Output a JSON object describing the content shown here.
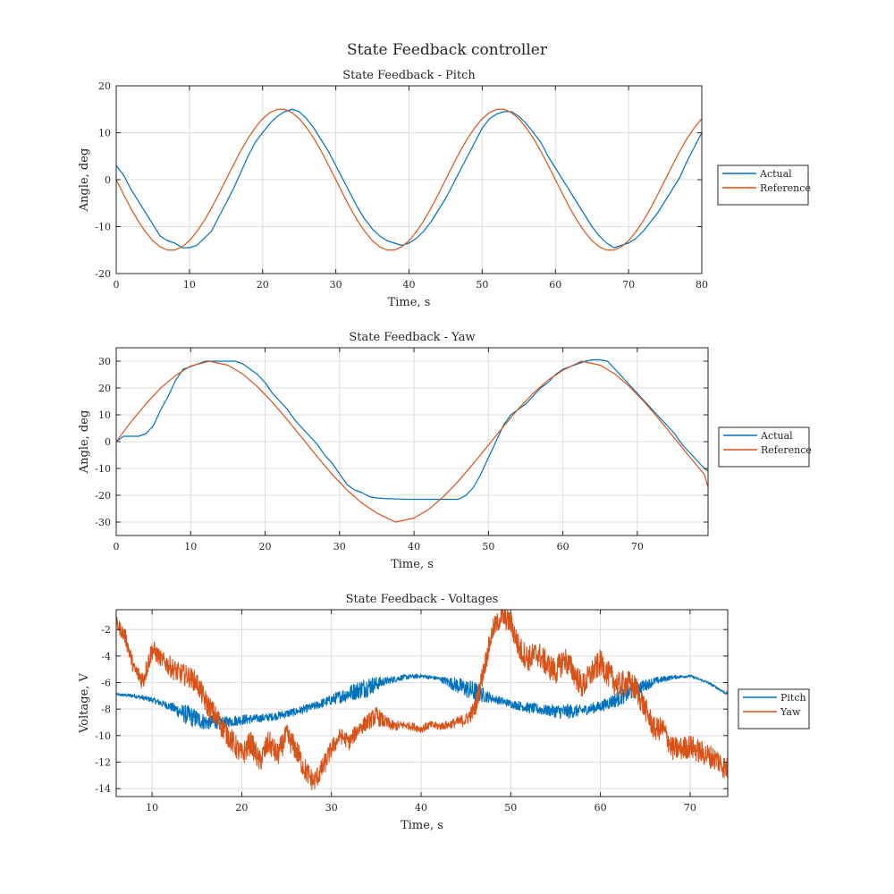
{
  "figure_title": "State Feedback controller",
  "colors": {
    "blue": "#0072BD",
    "orange": "#D95319",
    "axis": "#262626",
    "grid": "#dcdcdc"
  },
  "chart_data": [
    {
      "type": "line",
      "title": "State Feedback - Pitch",
      "xlabel": "Time, s",
      "ylabel": "Angle, deg",
      "xlim": [
        0,
        80
      ],
      "ylim": [
        -20,
        20
      ],
      "xticks": [
        0,
        10,
        20,
        30,
        40,
        50,
        60,
        70,
        80
      ],
      "yticks": [
        -20,
        -10,
        0,
        10,
        20
      ],
      "grid": true,
      "legend_position": "east-outside",
      "series": [
        {
          "name": "Actual",
          "color": "#0072BD",
          "x": [
            0,
            1,
            2,
            3,
            4,
            5,
            6,
            7,
            8,
            9,
            10,
            11,
            12,
            13,
            14,
            15,
            16,
            17,
            18,
            19,
            20,
            21,
            22,
            23,
            24,
            25,
            26,
            27,
            28,
            29,
            30,
            31,
            32,
            33,
            34,
            35,
            36,
            37,
            38,
            39,
            40,
            41,
            42,
            43,
            44,
            45,
            46,
            47,
            48,
            49,
            50,
            51,
            52,
            53,
            54,
            55,
            56,
            57,
            58,
            59,
            60,
            61,
            62,
            63,
            64,
            65,
            66,
            67,
            68,
            69,
            70,
            71,
            72,
            73,
            74,
            75,
            76,
            77,
            78,
            79,
            80
          ],
          "y": [
            3,
            1,
            -2,
            -4.5,
            -7,
            -9.5,
            -12,
            -13,
            -13.5,
            -14.5,
            -14.5,
            -14,
            -12.5,
            -11,
            -8,
            -5,
            -2,
            1.5,
            5,
            8,
            10,
            12,
            13.5,
            14.5,
            15,
            14.5,
            13,
            11,
            8.5,
            6,
            3,
            0,
            -3,
            -6,
            -8.5,
            -10.5,
            -12,
            -13,
            -13.5,
            -14,
            -13.5,
            -12.5,
            -11,
            -9,
            -6.5,
            -4,
            -1,
            2,
            5,
            8,
            11,
            13,
            14,
            14.5,
            14.5,
            13.5,
            12,
            10,
            8,
            5,
            2.5,
            0,
            -2.5,
            -5,
            -7.5,
            -10,
            -12,
            -13.5,
            -14.5,
            -14,
            -13.5,
            -12.5,
            -11,
            -9,
            -7,
            -4.5,
            -2,
            0.5,
            4,
            7,
            10
          ]
        },
        {
          "name": "Reference",
          "color": "#D95319",
          "x": [
            0,
            1,
            2,
            3,
            4,
            5,
            6,
            7,
            8,
            9,
            10,
            11,
            12,
            13,
            14,
            15,
            16,
            17,
            18,
            19,
            20,
            21,
            22,
            23,
            24,
            25,
            26,
            27,
            28,
            29,
            30,
            31,
            32,
            33,
            34,
            35,
            36,
            37,
            38,
            39,
            40,
            41,
            42,
            43,
            44,
            45,
            46,
            47,
            48,
            49,
            50,
            51,
            52,
            53,
            54,
            55,
            56,
            57,
            58,
            59,
            60,
            61,
            62,
            63,
            64,
            65,
            66,
            67,
            68,
            69,
            70,
            71,
            72,
            73,
            74,
            75,
            76,
            77,
            78,
            79,
            80
          ],
          "y": [
            0,
            -3.1,
            -6.1,
            -8.8,
            -11.1,
            -13,
            -14.3,
            -15,
            -15,
            -14.3,
            -13,
            -11.1,
            -8.8,
            -6.1,
            -3.1,
            0,
            3.1,
            6.1,
            8.8,
            11.1,
            13,
            14.3,
            15,
            15,
            14.3,
            13,
            11.1,
            8.8,
            6.1,
            3.1,
            0,
            -3.1,
            -6.1,
            -8.8,
            -11.1,
            -13,
            -14.3,
            -15,
            -15,
            -14.3,
            -13,
            -11.1,
            -8.8,
            -6.1,
            -3.1,
            0,
            3.1,
            6.1,
            8.8,
            11.1,
            13,
            14.3,
            15,
            15,
            14.3,
            13,
            11.1,
            8.8,
            6.1,
            3.1,
            0,
            -3.1,
            -6.1,
            -8.8,
            -11.1,
            -13,
            -14.3,
            -15,
            -15,
            -14.3,
            -13,
            -11.1,
            -8.8,
            -6.1,
            -3.1,
            0,
            3.1,
            6.1,
            8.8,
            11.1,
            13
          ]
        }
      ]
    },
    {
      "type": "line",
      "title": "State Feedback - Yaw",
      "xlabel": "Time, s",
      "ylabel": "Angle, deg",
      "xlim": [
        0,
        79.5
      ],
      "ylim": [
        -35,
        35
      ],
      "xticks": [
        0,
        10,
        20,
        30,
        40,
        50,
        60,
        70
      ],
      "yticks": [
        -30,
        -20,
        -10,
        0,
        10,
        20,
        30
      ],
      "grid": true,
      "legend_position": "east-outside",
      "series": [
        {
          "name": "Actual",
          "color": "#0072BD",
          "x": [
            0,
            1,
            2,
            3,
            4,
            5,
            6,
            7,
            8,
            9,
            10,
            11,
            12,
            13,
            14,
            15,
            16,
            17,
            18,
            19,
            20,
            21,
            22,
            23,
            24,
            25,
            26,
            27,
            28,
            29,
            30,
            31,
            32,
            33,
            34,
            35,
            36,
            37,
            38,
            39,
            40,
            41,
            42,
            43,
            44,
            45,
            46,
            47,
            48,
            49,
            50,
            51,
            52,
            53,
            54,
            55,
            56,
            57,
            58,
            59,
            60,
            61,
            62,
            63,
            64,
            65,
            66,
            67,
            68,
            69,
            70,
            71,
            72,
            73,
            74,
            75,
            76,
            77,
            78,
            79,
            79.5
          ],
          "y": [
            0,
            2,
            2,
            2,
            3,
            6,
            12,
            17,
            23,
            27,
            28,
            29,
            30,
            30,
            30,
            30,
            30,
            29,
            27,
            25,
            22,
            18,
            15,
            12,
            8,
            5,
            2,
            -1,
            -5,
            -8,
            -12,
            -16,
            -18,
            -19,
            -20.5,
            -21,
            -21.2,
            -21.3,
            -21.4,
            -21.5,
            -21.5,
            -21.5,
            -21.5,
            -21.5,
            -21.5,
            -21.5,
            -21.5,
            -20,
            -17,
            -12,
            -6,
            0,
            6,
            10,
            12,
            14,
            17,
            20,
            22,
            25,
            27,
            28,
            29,
            30,
            30.5,
            30.5,
            30,
            27,
            24,
            21,
            18,
            15,
            12,
            9,
            6,
            3,
            -1,
            -4,
            -7,
            -10,
            -11
          ]
        },
        {
          "name": "Reference",
          "color": "#D95319",
          "x": [
            0,
            2,
            4,
            6,
            8,
            10,
            12.5,
            15,
            17,
            19,
            21,
            23,
            25,
            27,
            29,
            31,
            33,
            35,
            37.5,
            40,
            42,
            44,
            46,
            48,
            50,
            52,
            54,
            56,
            58,
            60,
            62.5,
            65,
            67,
            69,
            71,
            73,
            75,
            77,
            79,
            79.5
          ],
          "y": [
            0,
            7.4,
            14.1,
            20.1,
            24.7,
            28.2,
            30,
            28.5,
            25.2,
            20.4,
            14.6,
            8.1,
            1.3,
            -5.6,
            -12.2,
            -18,
            -22.9,
            -26.6,
            -30,
            -28.5,
            -25.2,
            -20.4,
            -14.6,
            -8.1,
            -1.3,
            5.6,
            12.2,
            18,
            22.9,
            26.6,
            30,
            28.5,
            25.2,
            20.4,
            14.6,
            8.1,
            1.3,
            -5.6,
            -12.2,
            -17
          ]
        }
      ]
    },
    {
      "type": "line",
      "title": "State Feedback - Voltages",
      "xlabel": "Time, s",
      "ylabel": "Voltage, V",
      "xlim": [
        6,
        74.2
      ],
      "ylim": [
        -14.6,
        -0.5
      ],
      "xticks": [
        10,
        20,
        30,
        40,
        50,
        60,
        70
      ],
      "yticks": [
        -14,
        -12,
        -10,
        -8,
        -6,
        -4,
        -2
      ],
      "grid": true,
      "legend_position": "east-outside",
      "series": [
        {
          "name": "Pitch",
          "color": "#0072BD",
          "x": [
            6,
            8,
            10,
            12,
            14,
            16,
            18,
            20,
            22,
            24,
            26,
            28,
            30,
            32,
            34,
            36,
            38,
            40,
            42,
            44,
            46,
            48,
            50,
            52,
            54,
            56,
            58,
            60,
            62,
            64,
            66,
            68,
            70,
            72,
            74
          ],
          "y": [
            -6.9,
            -7,
            -7.3,
            -7.8,
            -8.5,
            -9,
            -9,
            -8.8,
            -8.7,
            -8.5,
            -8.2,
            -7.8,
            -7.3,
            -6.8,
            -6.3,
            -5.9,
            -5.6,
            -5.5,
            -5.7,
            -6.2,
            -6.7,
            -7.2,
            -7.6,
            -7.9,
            -8.1,
            -8.2,
            -8.1,
            -7.8,
            -7.2,
            -6.5,
            -5.9,
            -5.6,
            -5.5,
            -6,
            -6.8
          ],
          "noise": [
            0.1,
            0.15,
            0.2,
            0.3,
            0.8,
            0.6,
            0.4,
            0.4,
            0.3,
            0.3,
            0.3,
            0.3,
            0.4,
            0.6,
            0.8,
            0.3,
            0.2,
            0.15,
            0.15,
            0.6,
            0.8,
            0.3,
            0.3,
            0.4,
            0.4,
            0.6,
            0.4,
            0.4,
            0.6,
            0.6,
            0.3,
            0.15,
            0.1,
            0.1,
            0.1
          ]
        },
        {
          "name": "Yaw",
          "color": "#D95319",
          "x": [
            6,
            7,
            8,
            9,
            10,
            11,
            12,
            13,
            14,
            15,
            16,
            17,
            18,
            19,
            20,
            21,
            22,
            23,
            24,
            25,
            26,
            27,
            28,
            29,
            30,
            31,
            32,
            33,
            34,
            35,
            36,
            37,
            38,
            39,
            40,
            41,
            42,
            43,
            44,
            45,
            46,
            47,
            48,
            49,
            50,
            51,
            52,
            53,
            54,
            55,
            56,
            57,
            58,
            59,
            60,
            61,
            62,
            63,
            64,
            65,
            66,
            67,
            68,
            69,
            70,
            71,
            72,
            73,
            74
          ],
          "y": [
            -1.5,
            -2.5,
            -5,
            -5.8,
            -3.5,
            -4.2,
            -4.8,
            -5.3,
            -5.5,
            -6,
            -7.5,
            -8.5,
            -9.5,
            -10.5,
            -11.5,
            -10.5,
            -12,
            -10.5,
            -11.5,
            -10,
            -11,
            -12.5,
            -13.5,
            -12.5,
            -11,
            -10,
            -10.5,
            -9.5,
            -9,
            -8.5,
            -9,
            -9.3,
            -9.2,
            -9.3,
            -9.5,
            -9.2,
            -9.3,
            -9.2,
            -9,
            -8.8,
            -8,
            -5,
            -2,
            -1,
            -1.5,
            -3.5,
            -4.2,
            -3.8,
            -4.6,
            -5.2,
            -4.2,
            -5.2,
            -6.3,
            -5.3,
            -4.5,
            -5.5,
            -6.2,
            -6,
            -6.5,
            -8,
            -9.5,
            -9.5,
            -11,
            -11,
            -10.8,
            -11.2,
            -11.5,
            -11.8,
            -12.5
          ],
          "noise": [
            0.5,
            0.6,
            0.6,
            0.8,
            0.8,
            0.6,
            0.8,
            0.8,
            0.8,
            0.8,
            0.9,
            0.9,
            0.9,
            0.9,
            0.9,
            0.9,
            0.9,
            0.9,
            0.9,
            0.9,
            0.9,
            0.9,
            0.8,
            0.8,
            0.7,
            0.6,
            0.6,
            0.6,
            0.6,
            0.7,
            0.5,
            0.4,
            0.3,
            0.3,
            0.3,
            0.3,
            0.3,
            0.3,
            0.4,
            0.5,
            0.7,
            0.8,
            0.8,
            0.8,
            0.9,
            1,
            1,
            1,
            1,
            1,
            1,
            1,
            1,
            1,
            1,
            1,
            1,
            1,
            1,
            0.9,
            0.9,
            0.9,
            0.9,
            0.9,
            0.9,
            0.9,
            0.9,
            0.9,
            0.9
          ]
        }
      ]
    }
  ]
}
